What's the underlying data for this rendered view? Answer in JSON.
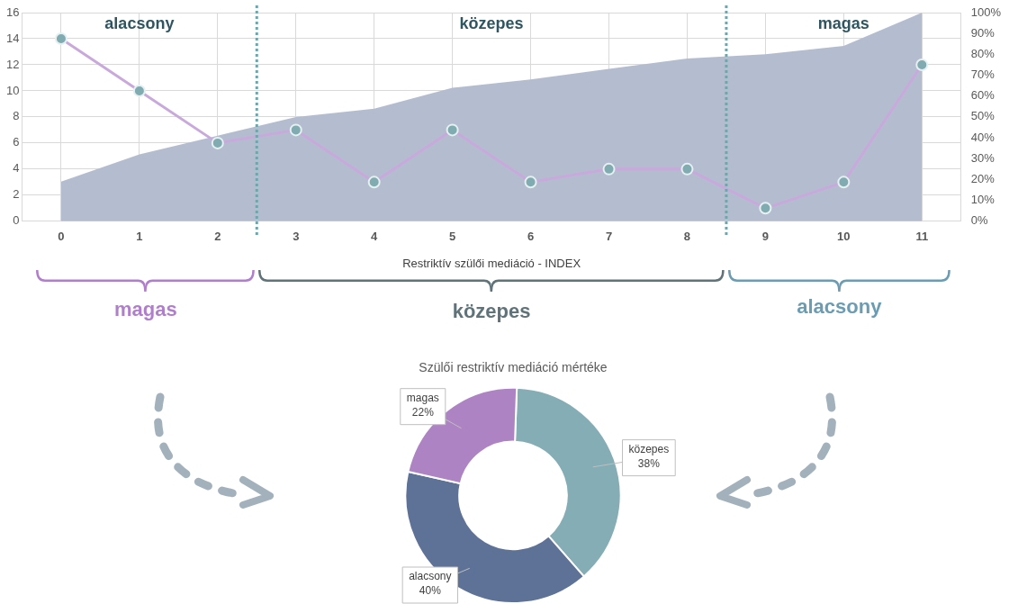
{
  "chart_data": [
    {
      "type": "line",
      "xlabel": "Restriktív szülői mediáció - INDEX",
      "x": [
        0,
        1,
        2,
        3,
        4,
        5,
        6,
        7,
        8,
        9,
        10,
        11
      ],
      "series": [
        {
          "type": "area",
          "axis": "y2",
          "color": "#b4bdd0",
          "values": [
            19,
            32,
            41,
            50,
            54,
            64,
            68,
            73,
            78,
            80,
            84,
            100
          ]
        },
        {
          "type": "line",
          "color": "#7fabb1",
          "marker": "circle",
          "values": [
            14,
            10,
            6,
            7,
            3,
            7,
            3,
            4,
            4,
            1,
            3,
            12
          ]
        }
      ],
      "xlim": [
        -0.5,
        11.5
      ],
      "xticks": [
        0,
        1,
        2,
        3,
        4,
        5,
        6,
        7,
        8,
        9,
        10,
        11
      ],
      "ylim": [
        0,
        16
      ],
      "yticks": [
        0,
        2,
        4,
        6,
        8,
        10,
        12,
        14,
        16
      ],
      "y2lim": [
        0,
        100
      ],
      "y2ticks": [
        {
          "value": 0,
          "label": "0%"
        },
        {
          "value": 10,
          "label": "10%"
        },
        {
          "value": 20,
          "label": "20%"
        },
        {
          "value": 30,
          "label": "30%"
        },
        {
          "value": 40,
          "label": "40%"
        },
        {
          "value": 50,
          "label": "50%"
        },
        {
          "value": 60,
          "label": "60%"
        },
        {
          "value": 70,
          "label": "70%"
        },
        {
          "value": 80,
          "label": "80%"
        },
        {
          "value": 90,
          "label": "90%"
        },
        {
          "value": 100,
          "label": "100%"
        }
      ],
      "ref_lines": [
        {
          "axis": "x",
          "value": 2.5,
          "color": "#6fa6ac",
          "line_style": "dotted"
        },
        {
          "axis": "x",
          "value": 8.5,
          "color": "#6fa6ac",
          "line_style": "dotted"
        }
      ],
      "annotations": [
        "alacsony",
        "közepes",
        "magas",
        "magas",
        "közepes",
        "alacsony"
      ],
      "grid": true,
      "legend": false,
      "line_style": "solid"
    },
    {
      "type": "donut",
      "title": "Szülői restriktív mediáció mértéke",
      "categories": [
        "közepes",
        "alacsony",
        "magas"
      ],
      "values": [
        38,
        40,
        22
      ],
      "colors": [
        "#85adb5",
        "#5e7298",
        "#ae83c4"
      ],
      "value_labels": [
        "38%",
        "40%",
        "22%"
      ],
      "legend": false
    }
  ]
}
